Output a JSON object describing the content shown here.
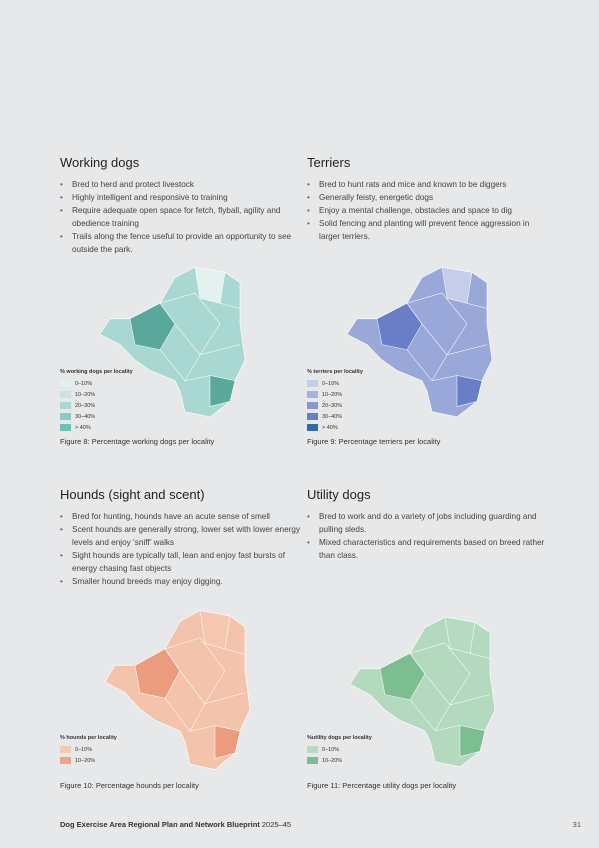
{
  "sections": [
    {
      "title": "Working dogs",
      "bullets": [
        "Bred to herd and protect livestock",
        "Highly intelligent and responsive to training",
        "Require adequate open space for fetch, flyball, agility and obedience training",
        "Trails along the fence useful to provide an opportunity to see outside the park."
      ],
      "legend": {
        "title": "% working dogs per locality",
        "items": [
          "0–10%",
          "10–20%",
          "20–30%",
          "30–40%",
          "> 40%"
        ]
      },
      "caption": "Figure 8: Percentage working dogs per locality"
    },
    {
      "title": "Terriers",
      "bullets": [
        "Bred to hunt rats and mice and known to be diggers",
        "Generally feisty, energetic dogs",
        "Enjoy a mental challenge, obstacles and space to dig",
        "Solid fencing and planting will prevent fence aggression in larger terriers."
      ],
      "legend": {
        "title": "% terriers per locality",
        "items": [
          "0–10%",
          "10–20%",
          "20–30%",
          "30–40%",
          "> 40%"
        ]
      },
      "caption": "Figure 9: Percentage terriers per locality"
    },
    {
      "title": "Hounds (sight and scent)",
      "bullets": [
        "Bred for hunting, hounds have an acute sense of smell",
        "Scent hounds are generally strong, lower set with lower energy levels and enjoy ‘sniff’ walks",
        "Sight hounds are typically tall, lean and enjoy fast bursts of energy chasing fast objects",
        "Smaller hound breeds may enjoy digging."
      ],
      "legend": {
        "title": "% hounds per locality",
        "items": [
          "0–10%",
          "10–20%"
        ]
      },
      "caption": "Figure 10: Percentage hounds per locality"
    },
    {
      "title": "Utility dogs",
      "bullets": [
        "Bred to work and do a variety of jobs including guarding and pulling sleds.",
        "Mixed characteristics and requirements based on breed rather than class."
      ],
      "legend": {
        "title": "%utility dogs per locality",
        "items": [
          "0–10%",
          "10–20%"
        ]
      },
      "caption": "Figure 11: Percentage utility dogs per locality"
    }
  ],
  "footer": {
    "title": "Dog Exercise Area Regional Plan and Network Blueprint",
    "years": "2025–45",
    "page": "31"
  }
}
